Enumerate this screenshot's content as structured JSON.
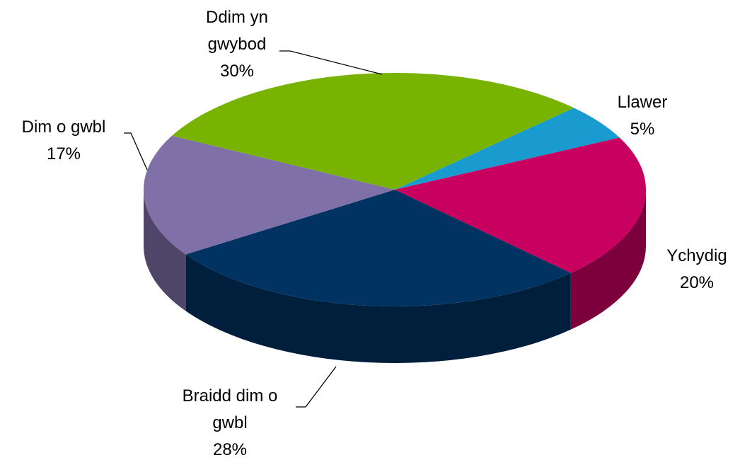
{
  "chart_data": {
    "type": "pie",
    "categories": [
      "Llawer",
      "Ychydig",
      "Braidd dim o gwbl",
      "Dim o gwbl",
      "Ddim yn gwybod"
    ],
    "values": [
      5,
      20,
      28,
      17,
      30
    ],
    "value_labels": [
      "5%",
      "20%",
      "28%",
      "17%",
      "30%"
    ],
    "colors": [
      "#1a9bd0",
      "#c8005f",
      "#003262",
      "#8070a8",
      "#77b300"
    ]
  }
}
